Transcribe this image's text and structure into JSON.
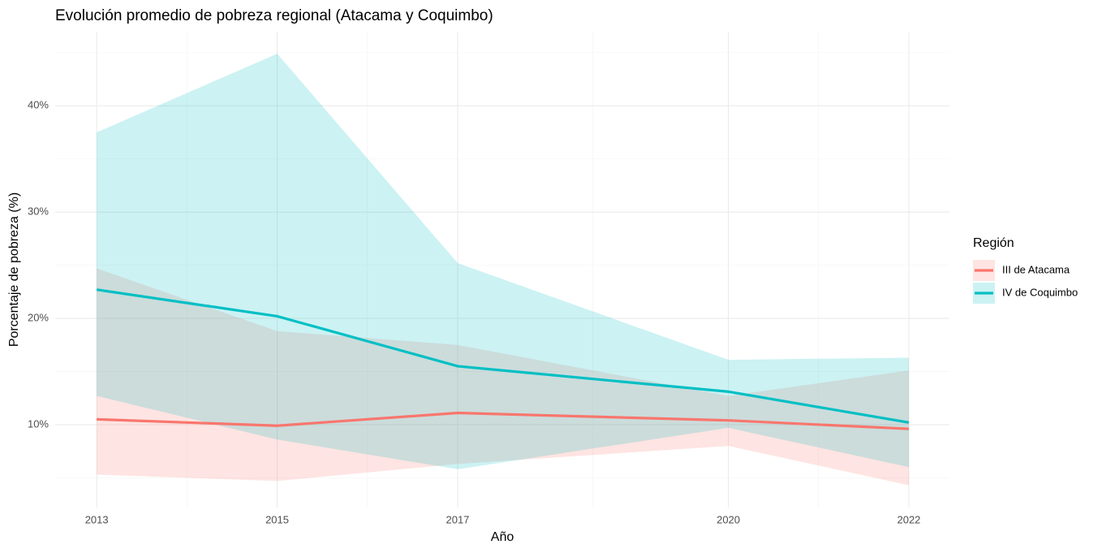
{
  "chart_data": {
    "type": "ribbon-line",
    "title": "Evolución promedio de pobreza regional (Atacama y Coquimbo)",
    "x_label": "Año",
    "y_label": "Porcentaje de pobreza (%)",
    "legend_title": "Región",
    "legend_position": "right",
    "grid": true,
    "x": [
      2013,
      2015,
      2017,
      2020,
      2022
    ],
    "xlim": [
      2012.54,
      2022.45
    ],
    "xticks": [
      2013,
      2015,
      2017,
      2020,
      2022
    ],
    "ylim": [
      2.2,
      46.9
    ],
    "yticks": [
      {
        "value": 10,
        "label": "10%"
      },
      {
        "value": 20,
        "label": "20%"
      },
      {
        "value": 30,
        "label": "30%"
      },
      {
        "value": 40,
        "label": "40%"
      }
    ],
    "series": [
      {
        "name": "III de Atacama",
        "color": "#F8766D",
        "values": [
          10.5,
          9.9,
          11.1,
          10.4,
          9.6
        ],
        "lower": [
          5.3,
          4.7,
          6.3,
          8.0,
          4.3
        ],
        "upper": [
          24.7,
          18.8,
          17.5,
          12.7,
          15.1
        ]
      },
      {
        "name": "IV de Coquimbo",
        "color": "#00BFC4",
        "values": [
          22.7,
          20.2,
          15.5,
          13.1,
          10.2
        ],
        "lower": [
          12.7,
          8.6,
          5.8,
          9.7,
          6.0
        ],
        "upper": [
          37.5,
          44.9,
          25.2,
          16.1,
          16.3
        ]
      }
    ]
  }
}
